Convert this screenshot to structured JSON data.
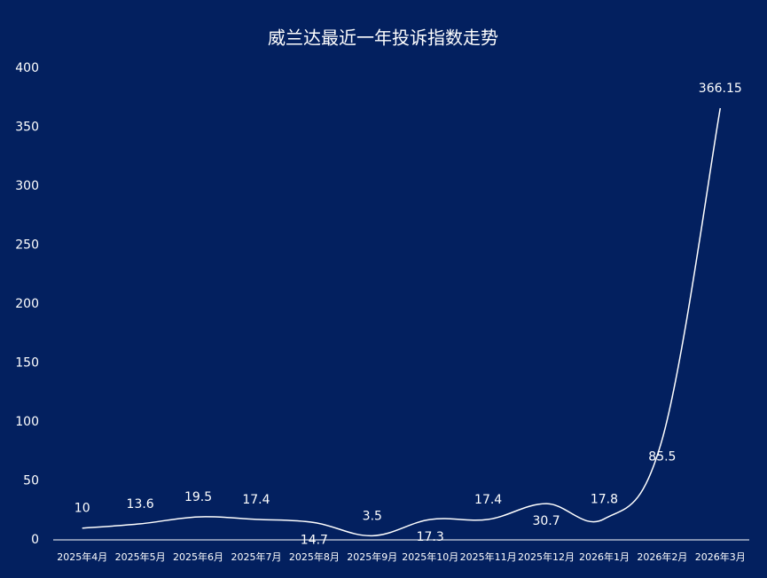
{
  "chart_data": {
    "type": "line",
    "title": "威兰达最近一年投诉指数走势",
    "categories": [
      "2025年4月",
      "2025年5月",
      "2025年6月",
      "2025年7月",
      "2025年8月",
      "2025年9月",
      "2025年10月",
      "2025年11月",
      "2025年12月",
      "2026年1月",
      "2026年2月",
      "2026年3月"
    ],
    "values": [
      10,
      13.6,
      19.5,
      17.4,
      14.7,
      3.5,
      17.3,
      17.4,
      30.7,
      17.8,
      85.5,
      366.15
    ],
    "color": "#ffffff",
    "ylim": [
      0,
      400
    ],
    "yticks": [
      0,
      50,
      100,
      150,
      200,
      250,
      300,
      350,
      400
    ],
    "grid": false
  }
}
